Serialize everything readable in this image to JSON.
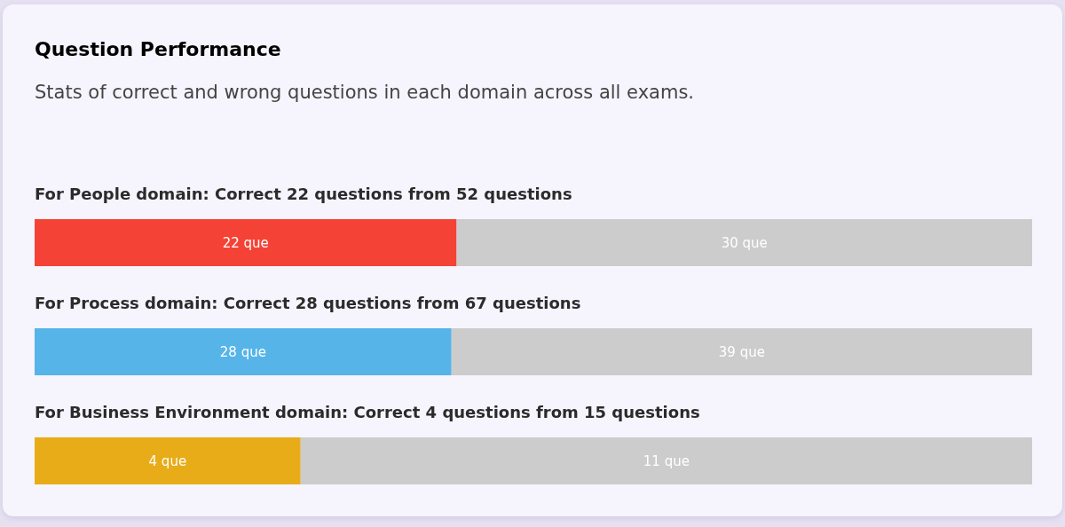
{
  "chart_data": [
    {
      "type": "bar",
      "title": "Question Performance",
      "subtitle": "Stats of correct and wrong questions in each domain across all exams.",
      "orientation": "horizontal",
      "stacked": true,
      "categories": [
        "For People domain: Correct 22 questions from 52 questions"
      ],
      "series": [
        {
          "color": "#f44336",
          "values": [
            22
          ],
          "value_labels": [
            "22 que"
          ]
        },
        {
          "color": "#cccccc",
          "values": [
            30
          ],
          "value_labels": [
            "30 que"
          ]
        }
      ],
      "xlim": [
        0,
        52
      ],
      "tick_labels": "y"
    },
    {
      "type": "bar",
      "orientation": "horizontal",
      "stacked": true,
      "categories": [
        "For Process domain: Correct 28 questions from 67 questions"
      ],
      "series": [
        {
          "color": "#56b4e9",
          "values": [
            28
          ],
          "value_labels": [
            "28 que"
          ]
        },
        {
          "color": "#cccccc",
          "values": [
            39
          ],
          "value_labels": [
            "39 que"
          ]
        }
      ],
      "xlim": [
        0,
        67
      ],
      "tick_labels": "y"
    },
    {
      "type": "bar",
      "orientation": "horizontal",
      "stacked": true,
      "categories": [
        "For Business Environment domain: Correct 4 questions from 15 questions"
      ],
      "series": [
        {
          "color": "#e8ac18",
          "values": [
            4
          ],
          "value_labels": [
            "4 que"
          ]
        },
        {
          "color": "#cccccc",
          "values": [
            11
          ],
          "value_labels": [
            "11 que"
          ]
        }
      ],
      "xlim": [
        0,
        15
      ],
      "tick_labels": "y"
    }
  ]
}
